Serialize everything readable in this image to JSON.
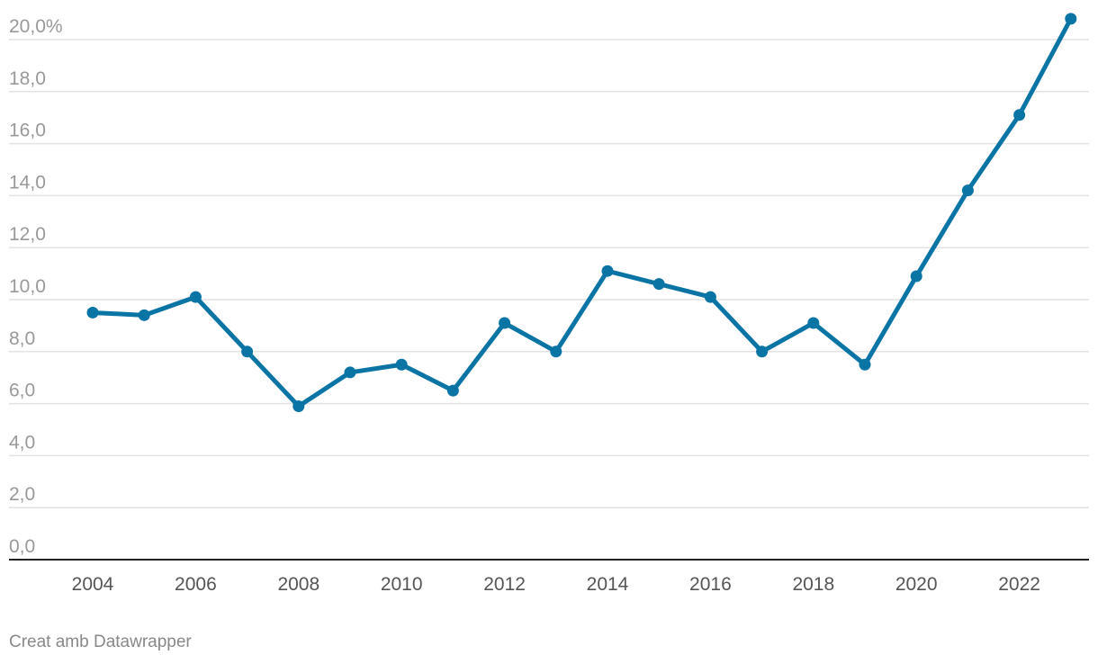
{
  "chart_data": {
    "type": "line",
    "title": "",
    "xlabel": "",
    "ylabel": "",
    "x": [
      2004,
      2005,
      2006,
      2007,
      2008,
      2009,
      2010,
      2011,
      2012,
      2013,
      2014,
      2015,
      2016,
      2017,
      2018,
      2019,
      2020,
      2021,
      2022,
      2023
    ],
    "series": [
      {
        "values": [
          9.5,
          9.4,
          10.1,
          8.0,
          5.9,
          7.2,
          7.5,
          6.5,
          9.1,
          8.0,
          11.1,
          10.6,
          10.1,
          8.0,
          9.1,
          7.5,
          10.9,
          14.2,
          17.1,
          20.8
        ]
      }
    ],
    "ylim": [
      0,
      20
    ],
    "yticks": [
      0,
      2,
      4,
      6,
      8,
      10,
      12,
      14,
      16,
      18,
      20
    ],
    "ytick_labels": [
      "0,0",
      "2,0",
      "4,0",
      "6,0",
      "8,0",
      "10,0",
      "12,0",
      "14,0",
      "16,0",
      "18,0",
      "20,0%"
    ],
    "xticks": [
      2004,
      2006,
      2008,
      2010,
      2012,
      2014,
      2016,
      2018,
      2020,
      2022
    ],
    "xtick_labels": [
      "2004",
      "2006",
      "2008",
      "2010",
      "2012",
      "2014",
      "2016",
      "2018",
      "2020",
      "2022"
    ],
    "grid": true,
    "legend": "none",
    "colors": {
      "line": "#0a74a4",
      "grid": "#e3e3e3",
      "axis": "#222222",
      "tick_text": "#999999",
      "xtick_text": "#555555"
    }
  },
  "credit": "Creat amb Datawrapper"
}
